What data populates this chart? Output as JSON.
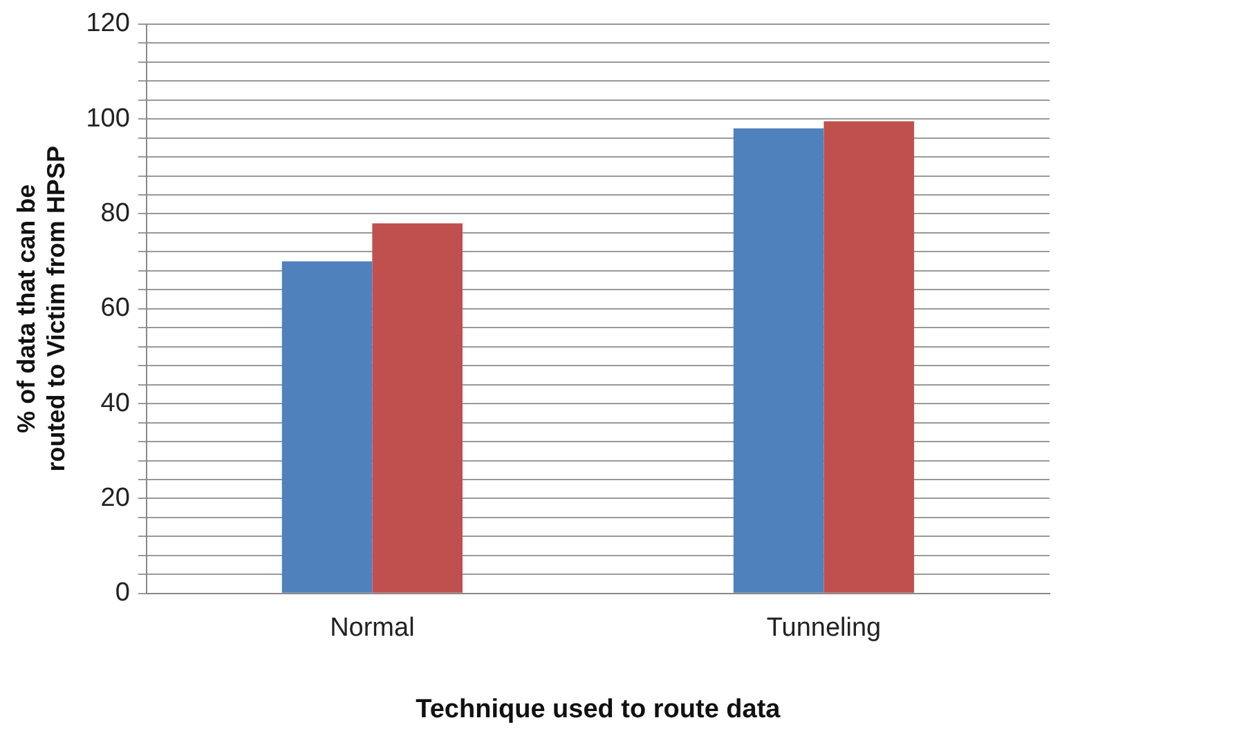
{
  "chart_data": {
    "type": "bar",
    "xlabel": "Technique used to route data",
    "ylabel": "% of data that can be routed to Victim from HPSP",
    "categories": [
      "Normal",
      "Tunneling"
    ],
    "series": [
      {
        "color": "#4f81bd",
        "values": [
          70,
          98
        ]
      },
      {
        "color": "#c0504d",
        "values": [
          78,
          99.5
        ]
      }
    ],
    "ylim": [
      0,
      120
    ],
    "yticks": [
      0,
      {
        "value": 4,
        "label": null
      },
      {
        "value": 8,
        "label": null
      },
      {
        "value": 12,
        "label": null
      },
      {
        "value": 16,
        "label": null
      },
      20,
      {
        "value": 24,
        "label": null
      },
      {
        "value": 28,
        "label": null
      },
      {
        "value": 32,
        "label": null
      },
      {
        "value": 36,
        "label": null
      },
      40,
      {
        "value": 44,
        "label": null
      },
      {
        "value": 48,
        "label": null
      },
      {
        "value": 52,
        "label": null
      },
      {
        "value": 56,
        "label": null
      },
      60,
      {
        "value": 64,
        "label": null
      },
      {
        "value": 68,
        "label": null
      },
      {
        "value": 72,
        "label": null
      },
      {
        "value": 76,
        "label": null
      },
      80,
      {
        "value": 84,
        "label": null
      },
      {
        "value": 88,
        "label": null
      },
      {
        "value": 92,
        "label": null
      },
      {
        "value": 96,
        "label": null
      },
      100,
      {
        "value": 104,
        "label": null
      },
      {
        "value": 108,
        "label": null
      },
      {
        "value": 112,
        "label": null
      },
      {
        "value": 116,
        "label": null
      },
      120
    ],
    "grid": "y"
  }
}
